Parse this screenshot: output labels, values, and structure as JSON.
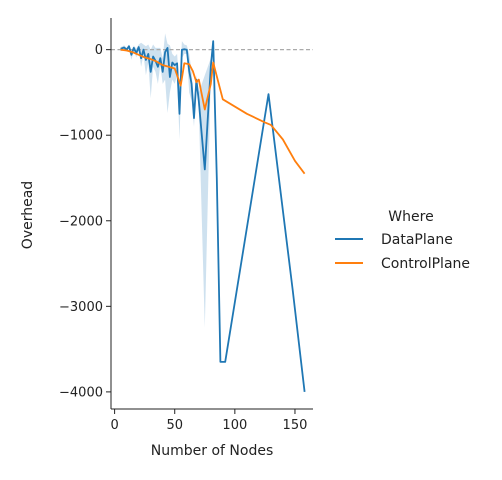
{
  "chart_data": {
    "type": "line",
    "xlabel": "Number of Nodes",
    "ylabel": "Overhead",
    "xlim": [
      -3,
      165
    ],
    "ylim": [
      -4200,
      370
    ],
    "xticks": [
      0,
      50,
      100,
      150
    ],
    "yticks": [
      0,
      -1000,
      -2000,
      -3000,
      -4000
    ],
    "xtick_labels": [
      "0",
      "50",
      "100",
      "150"
    ],
    "ytick_labels": [
      "0",
      "−1000",
      "−2000",
      "−3000",
      "−4000"
    ],
    "reference_line": {
      "y": 0,
      "style": "dashed",
      "color": "#aaaaaa"
    },
    "legend": {
      "title": "Where",
      "placement": "right"
    },
    "series": [
      {
        "name": "DataPlane",
        "color": "#1f77b4",
        "x": [
          5,
          8,
          10,
          12,
          14,
          16,
          18,
          20,
          22,
          24,
          26,
          28,
          30,
          32,
          34,
          36,
          38,
          40,
          42,
          44,
          46,
          48,
          50,
          52,
          54,
          56,
          58,
          60,
          62,
          64,
          66,
          68,
          70,
          75,
          80,
          82,
          85,
          88,
          92,
          128,
          148,
          158
        ],
        "y": [
          10,
          25,
          0,
          40,
          -60,
          20,
          -40,
          30,
          -100,
          0,
          -120,
          -50,
          -260,
          -80,
          -130,
          -200,
          -100,
          -260,
          -30,
          20,
          -320,
          -150,
          -180,
          -160,
          -750,
          0,
          5,
          0,
          -250,
          -400,
          -800,
          -350,
          -600,
          -1400,
          -200,
          100,
          -1500,
          -3650,
          -3650,
          -520,
          -2800,
          -4000
        ]
      },
      {
        "name": "ControlPlane",
        "color": "#ff7f0e",
        "x": [
          5,
          10,
          15,
          20,
          25,
          30,
          35,
          40,
          45,
          50,
          55,
          58,
          62,
          65,
          68,
          70,
          75,
          80,
          82,
          90,
          110,
          125,
          130,
          140,
          150,
          158
        ],
        "y": [
          0,
          -10,
          -30,
          -60,
          -90,
          -110,
          -140,
          -180,
          -200,
          -220,
          -420,
          -160,
          -170,
          -250,
          -380,
          -350,
          -700,
          -400,
          -150,
          -580,
          -750,
          -850,
          -880,
          -1050,
          -1300,
          -1450
        ]
      }
    ],
    "band": {
      "series": "DataPlane",
      "color": "#1f77b4",
      "lower": [
        -20,
        0,
        -20,
        10,
        -120,
        -10,
        -90,
        0,
        -200,
        -60,
        -300,
        -150,
        -570,
        -200,
        -260,
        -400,
        -180,
        -400,
        -350,
        -740,
        -500,
        -350,
        -400,
        -300,
        -1050,
        -100,
        -50,
        -50,
        -500,
        -600,
        -900,
        -400,
        -700,
        -3250,
        -300,
        100,
        -1500,
        -3650,
        -3650,
        -520,
        -2800,
        -4000
      ],
      "upper": [
        30,
        50,
        20,
        60,
        -10,
        50,
        10,
        60,
        80,
        60,
        40,
        60,
        0,
        60,
        20,
        20,
        20,
        -100,
        190,
        70,
        50,
        -50,
        -80,
        -50,
        -450,
        100,
        60,
        50,
        -50,
        -250,
        -700,
        -300,
        -500,
        -300,
        -100,
        100,
        -1500,
        -3650,
        -3650,
        -520,
        -2800,
        -4000
      ]
    }
  }
}
